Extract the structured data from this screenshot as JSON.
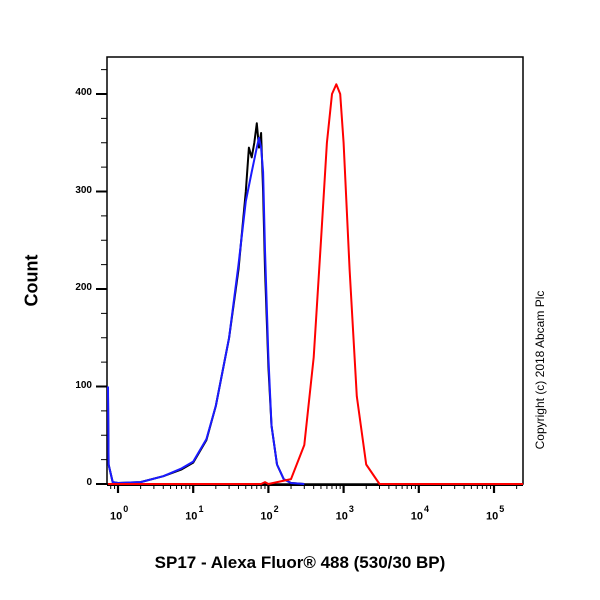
{
  "chart_data": {
    "type": "line",
    "title": "",
    "xlabel": "SP17 - Alexa Fluor® 488 (530/30 BP)",
    "ylabel": "Count",
    "x_scale": "log",
    "xlim": [
      0.7,
      250000
    ],
    "ylim": [
      0,
      440
    ],
    "x_ticks": [
      "10^0",
      "10^1",
      "10^2",
      "10^3",
      "10^4",
      "10^5"
    ],
    "y_ticks": [
      0,
      100,
      200,
      300,
      400
    ],
    "grid": false,
    "legend": null,
    "annotation": "Copyright (c) 2018 Abcam Plc",
    "series": [
      {
        "name": "black",
        "color": "#000000",
        "x": [
          0.7,
          0.75,
          0.85,
          1.0,
          2.0,
          4.0,
          7.0,
          10,
          15,
          20,
          30,
          40,
          50,
          55,
          60,
          65,
          70,
          75,
          80,
          85,
          90,
          100,
          110,
          130,
          160,
          200,
          300
        ],
        "y": [
          90,
          20,
          2,
          1,
          2,
          8,
          15,
          22,
          45,
          80,
          150,
          220,
          300,
          345,
          335,
          350,
          370,
          345,
          360,
          300,
          220,
          120,
          60,
          20,
          5,
          1,
          0
        ]
      },
      {
        "name": "blue",
        "color": "#1a1aff",
        "x": [
          0.7,
          0.75,
          0.85,
          1.0,
          2.0,
          4.0,
          7.0,
          10,
          15,
          20,
          30,
          40,
          50,
          60,
          70,
          75,
          80,
          85,
          90,
          100,
          110,
          130,
          160,
          200,
          300
        ],
        "y": [
          100,
          20,
          2,
          1,
          2,
          8,
          16,
          23,
          46,
          80,
          150,
          225,
          290,
          320,
          345,
          355,
          345,
          320,
          240,
          130,
          60,
          20,
          5,
          1,
          0
        ]
      },
      {
        "name": "red",
        "color": "#ff0000",
        "x": [
          0.7,
          80,
          90,
          100,
          200,
          300,
          400,
          500,
          600,
          700,
          800,
          900,
          1000,
          1200,
          1500,
          2000,
          3000,
          4000,
          250000
        ],
        "y": [
          0,
          0,
          2,
          0,
          5,
          40,
          130,
          250,
          350,
          400,
          410,
          400,
          350,
          220,
          90,
          20,
          0,
          0,
          0
        ]
      }
    ]
  }
}
